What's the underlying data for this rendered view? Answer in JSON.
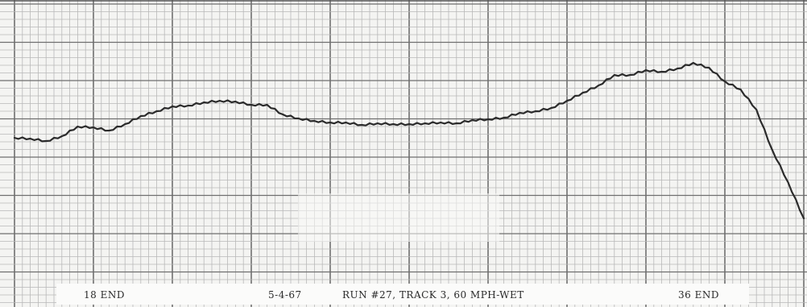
{
  "chart_data": {
    "type": "line",
    "title": "",
    "xlabel": "",
    "ylabel": "",
    "x": [
      0,
      2,
      4,
      6,
      8,
      10,
      12,
      14,
      16,
      18,
      20,
      22,
      24,
      26,
      28,
      30,
      32,
      34,
      36,
      38,
      40,
      42,
      44,
      46,
      48,
      50,
      52,
      54,
      56,
      58,
      60,
      62,
      64,
      66,
      68,
      70,
      72,
      74,
      76,
      78,
      80,
      82,
      84,
      86,
      88,
      90,
      92,
      94,
      96,
      98,
      100
    ],
    "series": [
      {
        "values": [
          210,
          209,
          206,
          212,
          224,
          223,
          219,
          227,
          237,
          243,
          249,
          250,
          254,
          256,
          255,
          251,
          251,
          239,
          234,
          231,
          229,
          229,
          226,
          228,
          227,
          227,
          228,
          229,
          228,
          232,
          233,
          235,
          241,
          243,
          247,
          256,
          266,
          275,
          288,
          288,
          294,
          292,
          296,
          303,
          297,
          280,
          270,
          245,
          195,
          155,
          110
        ]
      }
    ],
    "annotations": {
      "left_marker": "18 END",
      "date": "5-4-67",
      "run": "RUN #27, TRACK 3, 60 MPH-WET",
      "right_marker": "36 END"
    },
    "grid": true,
    "colors": {
      "paper": "#f4f4f2",
      "grid_minor": "#b9b9b9",
      "grid_major": "#6f6f6f",
      "trace": "#2b2b2b"
    }
  }
}
